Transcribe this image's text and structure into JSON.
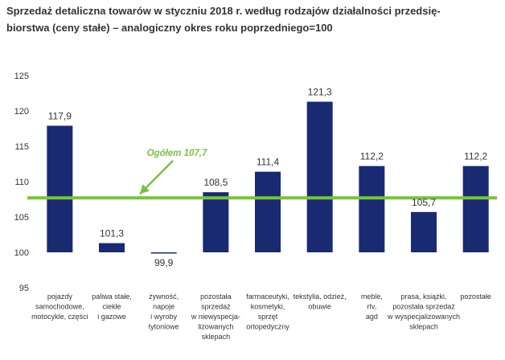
{
  "chart_data": {
    "type": "bar",
    "title_line1": "Sprzedaż detaliczna towarów w styczniu 2018 r. według rodzajów działalności przedsię-",
    "title_line2": "biorstwa (ceny stałe) – analogiczny okres roku poprzedniego=100",
    "categories": [
      [
        "pojazdy",
        "samochodowe,",
        "motocykle, części"
      ],
      [
        "paliwa stałe,",
        "ciekłe",
        "i gazowe"
      ],
      [
        "żywność,",
        "napoje",
        "i wyroby",
        "tytoniowe"
      ],
      [
        "pozostała",
        "sprzedaż",
        "w niewyspecja-",
        "lizowanych",
        "sklepach"
      ],
      [
        "farmaceutyki,",
        "kosmetyki,",
        "sprzęt",
        "ortopedyczny"
      ],
      [
        "tekstylia, odzież,",
        "obuwie"
      ],
      [
        "meble,",
        "rtv,",
        "agd"
      ],
      [
        "prasa, książki,",
        "pozostała sprzedaż",
        "w wyspecjalizowanych",
        "sklepach"
      ],
      [
        "pozostałe"
      ]
    ],
    "values": [
      117.9,
      101.3,
      99.9,
      108.5,
      111.4,
      121.3,
      112.2,
      105.7,
      112.2
    ],
    "value_labels": [
      "117,9",
      "101,3",
      "99,9",
      "108,5",
      "111,4",
      "121,3",
      "112,2",
      "105,7",
      "112,2"
    ],
    "ylim": [
      95,
      125
    ],
    "yticks": [
      95,
      100,
      105,
      110,
      115,
      120,
      125
    ],
    "grid": false,
    "reference": {
      "label": "Ogółem 107,7",
      "value": 107.7
    },
    "colors": {
      "bar": "#1a2a72",
      "reference": "#7ac143",
      "axis": "#333333"
    }
  }
}
